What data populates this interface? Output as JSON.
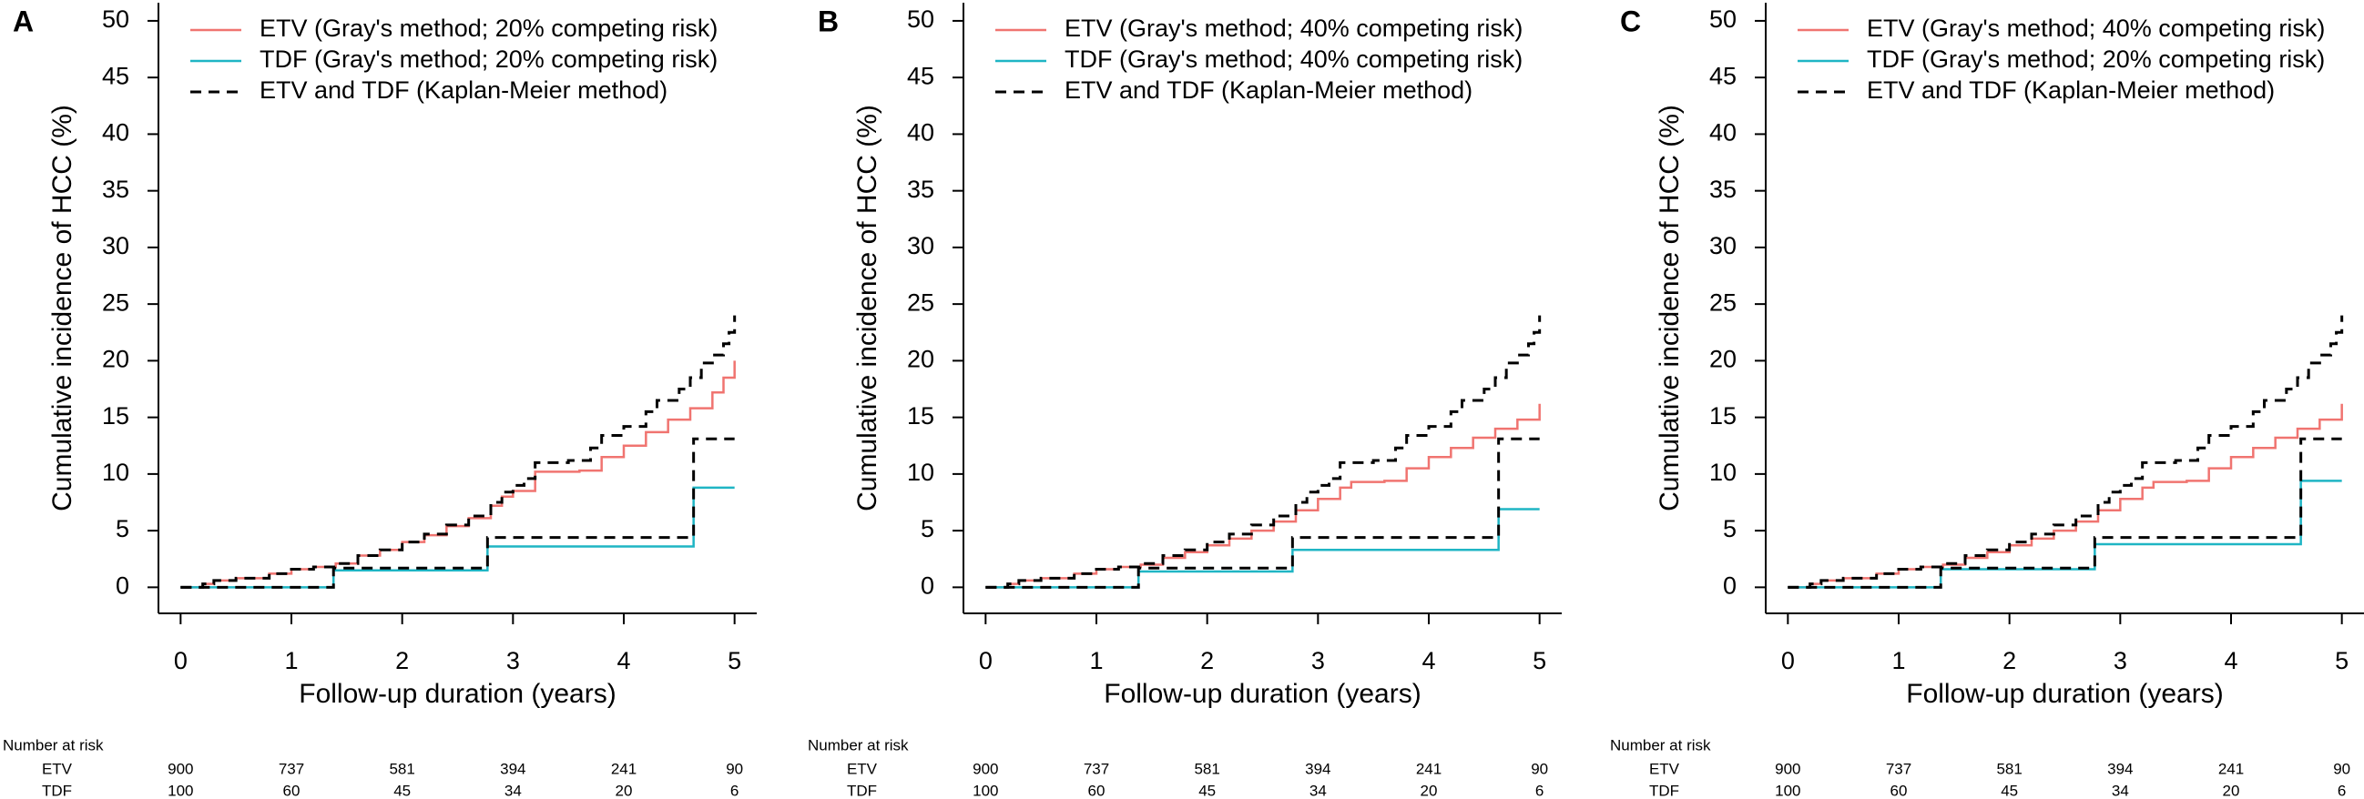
{
  "chart_data": [
    {
      "type": "line",
      "label": "A",
      "ylabel": "Cumulative incidence of HCC (%)",
      "xlabel": "Follow-up duration (years)",
      "xlim": [
        -0.2,
        5.2
      ],
      "ylim": [
        -2.3,
        51.6
      ],
      "xticks": [
        0,
        1,
        2,
        3,
        4,
        5
      ],
      "yticks": [
        0,
        5,
        10,
        15,
        20,
        25,
        30,
        35,
        40,
        45,
        50
      ],
      "grid": false,
      "series": [
        {
          "name": "ETV (Gray's method; 20% competing risk)",
          "color": "#f07470",
          "dashed": false,
          "x": [
            0,
            0.2,
            0.3,
            0.5,
            0.8,
            1.0,
            1.2,
            1.4,
            1.6,
            1.8,
            2.0,
            2.2,
            2.4,
            2.6,
            2.8,
            2.9,
            3.0,
            3.2,
            3.6,
            3.8,
            4.0,
            4.2,
            4.4,
            4.6,
            4.8,
            4.9,
            5.0
          ],
          "values": [
            0,
            0.3,
            0.6,
            0.8,
            1.2,
            1.6,
            1.8,
            2.1,
            2.8,
            3.3,
            4.0,
            4.6,
            5.4,
            6.1,
            7.2,
            8.0,
            8.5,
            10.2,
            10.3,
            11.5,
            12.5,
            13.7,
            14.8,
            15.8,
            17.2,
            18.5,
            20.0
          ]
        },
        {
          "name": "TDF (Gray's method; 20% competing risk)",
          "color": "#1fb5c4",
          "dashed": false,
          "x": [
            0,
            1.38,
            2.77,
            4.63,
            5.0
          ],
          "values": [
            0,
            1.5,
            3.6,
            8.8,
            8.8
          ]
        },
        {
          "name": "ETV and TDF (Kaplan-Meier method)",
          "color": "#000000",
          "dashed": true,
          "x": [
            0,
            0.2,
            0.3,
            0.5,
            0.8,
            1.0,
            1.2,
            1.4,
            1.6,
            1.8,
            2.0,
            2.2,
            2.4,
            2.6,
            2.8,
            2.9,
            3.0,
            3.1,
            3.2,
            3.5,
            3.7,
            3.8,
            4.0,
            4.2,
            4.3,
            4.5,
            4.6,
            4.7,
            4.8,
            4.9,
            4.95,
            5.0
          ],
          "values": [
            0,
            0.3,
            0.6,
            0.8,
            1.2,
            1.6,
            1.8,
            2.1,
            2.8,
            3.3,
            4.0,
            4.7,
            5.5,
            6.3,
            7.5,
            8.4,
            9.0,
            9.6,
            11.0,
            11.2,
            12.3,
            13.4,
            14.2,
            15.5,
            16.5,
            17.5,
            18.5,
            19.8,
            20.5,
            21.5,
            22.5,
            24.0
          ]
        },
        {
          "name": null,
          "color": "#000000",
          "dashed": true,
          "x": [
            0,
            1.38,
            2.77,
            4.63,
            5.0
          ],
          "values": [
            0,
            1.7,
            4.4,
            13.1,
            13.1
          ]
        }
      ],
      "risk_table": {
        "title": "Number at risk",
        "rows": [
          {
            "label": "ETV",
            "values": [
              900,
              737,
              581,
              394,
              241,
              90
            ]
          },
          {
            "label": "TDF",
            "values": [
              100,
              60,
              45,
              34,
              20,
              6
            ]
          }
        ]
      }
    },
    {
      "type": "line",
      "label": "B",
      "ylabel": "Cumulative incidence of HCC (%)",
      "xlabel": "Follow-up duration (years)",
      "xlim": [
        -0.2,
        5.2
      ],
      "ylim": [
        -2.3,
        51.6
      ],
      "xticks": [
        0,
        1,
        2,
        3,
        4,
        5
      ],
      "yticks": [
        0,
        5,
        10,
        15,
        20,
        25,
        30,
        35,
        40,
        45,
        50
      ],
      "grid": false,
      "series": [
        {
          "name": "ETV (Gray's method; 40% competing risk)",
          "color": "#f07470",
          "dashed": false,
          "x": [
            0,
            0.2,
            0.3,
            0.5,
            0.8,
            1.0,
            1.2,
            1.4,
            1.6,
            1.8,
            2.0,
            2.2,
            2.4,
            2.6,
            2.8,
            3.0,
            3.2,
            3.3,
            3.6,
            3.8,
            4.0,
            4.2,
            4.4,
            4.6,
            4.8,
            5.0
          ],
          "values": [
            0,
            0.3,
            0.6,
            0.8,
            1.2,
            1.6,
            1.8,
            2.0,
            2.6,
            3.1,
            3.7,
            4.3,
            5.0,
            5.8,
            6.8,
            7.8,
            8.8,
            9.3,
            9.4,
            10.5,
            11.5,
            12.3,
            13.2,
            14.0,
            14.8,
            16.2
          ]
        },
        {
          "name": "TDF (Gray's method; 40% competing risk)",
          "color": "#1fb5c4",
          "dashed": false,
          "x": [
            0,
            1.38,
            2.77,
            4.63,
            5.0
          ],
          "values": [
            0,
            1.4,
            3.3,
            6.9,
            6.9
          ]
        },
        {
          "name": "ETV and TDF (Kaplan-Meier method)",
          "color": "#000000",
          "dashed": true,
          "x": [
            0,
            0.2,
            0.3,
            0.5,
            0.8,
            1.0,
            1.2,
            1.4,
            1.6,
            1.8,
            2.0,
            2.2,
            2.4,
            2.6,
            2.8,
            2.9,
            3.0,
            3.1,
            3.2,
            3.5,
            3.7,
            3.8,
            4.0,
            4.2,
            4.3,
            4.5,
            4.6,
            4.7,
            4.8,
            4.9,
            4.95,
            5.0
          ],
          "values": [
            0,
            0.3,
            0.6,
            0.8,
            1.2,
            1.6,
            1.8,
            2.1,
            2.8,
            3.3,
            4.0,
            4.7,
            5.5,
            6.3,
            7.5,
            8.4,
            9.0,
            9.6,
            11.0,
            11.2,
            12.3,
            13.4,
            14.2,
            15.5,
            16.5,
            17.5,
            18.5,
            19.8,
            20.5,
            21.5,
            22.5,
            24.0
          ]
        },
        {
          "name": null,
          "color": "#000000",
          "dashed": true,
          "x": [
            0,
            1.38,
            2.77,
            4.63,
            5.0
          ],
          "values": [
            0,
            1.7,
            4.4,
            13.1,
            13.1
          ]
        }
      ],
      "risk_table": {
        "title": "Number at risk",
        "rows": [
          {
            "label": "ETV",
            "values": [
              900,
              737,
              581,
              394,
              241,
              90
            ]
          },
          {
            "label": "TDF",
            "values": [
              100,
              60,
              45,
              34,
              20,
              6
            ]
          }
        ]
      }
    },
    {
      "type": "line",
      "label": "C",
      "ylabel": "Cumulative incidence of HCC (%)",
      "xlabel": "Follow-up duration (years)",
      "xlim": [
        -0.2,
        5.2
      ],
      "ylim": [
        -2.3,
        51.6
      ],
      "xticks": [
        0,
        1,
        2,
        3,
        4,
        5
      ],
      "yticks": [
        0,
        5,
        10,
        15,
        20,
        25,
        30,
        35,
        40,
        45,
        50
      ],
      "grid": false,
      "series": [
        {
          "name": "ETV (Gray's method; 40% competing risk)",
          "color": "#f07470",
          "dashed": false,
          "x": [
            0,
            0.2,
            0.3,
            0.5,
            0.8,
            1.0,
            1.2,
            1.4,
            1.6,
            1.8,
            2.0,
            2.2,
            2.4,
            2.6,
            2.8,
            3.0,
            3.2,
            3.3,
            3.6,
            3.8,
            4.0,
            4.2,
            4.4,
            4.6,
            4.8,
            5.0
          ],
          "values": [
            0,
            0.3,
            0.6,
            0.8,
            1.2,
            1.6,
            1.8,
            2.0,
            2.6,
            3.1,
            3.7,
            4.3,
            5.0,
            5.8,
            6.8,
            7.8,
            8.8,
            9.3,
            9.4,
            10.5,
            11.5,
            12.3,
            13.2,
            14.0,
            14.8,
            16.2
          ]
        },
        {
          "name": "TDF (Gray's method; 20% competing risk)",
          "color": "#1fb5c4",
          "dashed": false,
          "x": [
            0,
            1.38,
            2.77,
            4.63,
            5.0
          ],
          "values": [
            0,
            1.6,
            3.8,
            9.4,
            9.4
          ]
        },
        {
          "name": "ETV and TDF (Kaplan-Meier method)",
          "color": "#000000",
          "dashed": true,
          "x": [
            0,
            0.2,
            0.3,
            0.5,
            0.8,
            1.0,
            1.2,
            1.4,
            1.6,
            1.8,
            2.0,
            2.2,
            2.4,
            2.6,
            2.8,
            2.9,
            3.0,
            3.1,
            3.2,
            3.5,
            3.7,
            3.8,
            4.0,
            4.2,
            4.3,
            4.5,
            4.6,
            4.7,
            4.8,
            4.9,
            4.95,
            5.0
          ],
          "values": [
            0,
            0.3,
            0.6,
            0.8,
            1.2,
            1.6,
            1.8,
            2.1,
            2.8,
            3.3,
            4.0,
            4.7,
            5.5,
            6.3,
            7.5,
            8.4,
            9.0,
            9.6,
            11.0,
            11.2,
            12.3,
            13.4,
            14.2,
            15.5,
            16.5,
            17.5,
            18.5,
            19.8,
            20.5,
            21.5,
            22.5,
            24.0
          ]
        },
        {
          "name": null,
          "color": "#000000",
          "dashed": true,
          "x": [
            0,
            1.38,
            2.77,
            4.63,
            5.0
          ],
          "values": [
            0,
            1.7,
            4.4,
            13.1,
            13.1
          ]
        }
      ],
      "risk_table": {
        "title": "Number at risk",
        "rows": [
          {
            "label": "ETV",
            "values": [
              900,
              737,
              581,
              394,
              241,
              90
            ]
          },
          {
            "label": "TDF",
            "values": [
              100,
              60,
              45,
              34,
              20,
              6
            ]
          }
        ]
      }
    }
  ]
}
